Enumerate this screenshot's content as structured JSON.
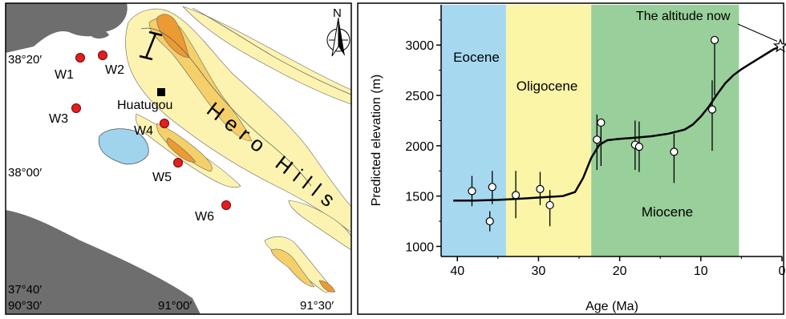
{
  "map": {
    "lat_labels": [
      "38°20′",
      "38°00′",
      "37°40′"
    ],
    "lon_labels": [
      "90°30′",
      "91°00′",
      "91°30′"
    ],
    "place_label": "Huatugou",
    "range_label": "Hero Hills",
    "north_label": "N",
    "wells": [
      {
        "name": "W1"
      },
      {
        "name": "W2"
      },
      {
        "name": "W3"
      },
      {
        "name": "W4"
      },
      {
        "name": "W5"
      },
      {
        "name": "W6"
      }
    ],
    "colors": {
      "basin": "#ffffff",
      "bedrock": "#6e6e6e",
      "lake": "#9fd3ee",
      "elev_low": "#fdf3b0",
      "elev_mid": "#f5d06a",
      "elev_high": "#ec9a33",
      "well": "#e02020"
    }
  },
  "chart_data": {
    "type": "scatter",
    "xlabel": "Age (Ma)",
    "ylabel": "Predicted elevation (m)",
    "xlim": [
      0,
      42
    ],
    "ylim": [
      900,
      3400
    ],
    "x_reversed": true,
    "x_ticks": [
      40,
      30,
      20,
      10,
      0
    ],
    "y_ticks": [
      1000,
      1500,
      2000,
      2500,
      3000
    ],
    "epochs": [
      {
        "name": "Eocene",
        "from": 42,
        "to": 34,
        "color": "#a6d8f0"
      },
      {
        "name": "Oligocene",
        "from": 34,
        "to": 23.5,
        "color": "#fbf5a8"
      },
      {
        "name": "Miocene",
        "from": 23.5,
        "to": 5.3,
        "color": "#98cf9a"
      }
    ],
    "points": [
      {
        "age": 38.2,
        "elev": 1550,
        "lo": 1400,
        "hi": 1700
      },
      {
        "age": 36.0,
        "elev": 1250,
        "lo": 1150,
        "hi": 1350
      },
      {
        "age": 35.7,
        "elev": 1590,
        "lo": 1420,
        "hi": 1750
      },
      {
        "age": 32.8,
        "elev": 1510,
        "lo": 1280,
        "hi": 1750
      },
      {
        "age": 29.8,
        "elev": 1570,
        "lo": 1410,
        "hi": 1740
      },
      {
        "age": 28.6,
        "elev": 1410,
        "lo": 1200,
        "hi": 1560
      },
      {
        "age": 22.8,
        "elev": 2060,
        "lo": 1760,
        "hi": 2310
      },
      {
        "age": 22.3,
        "elev": 2230,
        "lo": 1800,
        "hi": 2270
      },
      {
        "age": 18.1,
        "elev": 2010,
        "lo": 1760,
        "hi": 2250
      },
      {
        "age": 17.6,
        "elev": 1990,
        "lo": 1740,
        "hi": 2240
      },
      {
        "age": 13.3,
        "elev": 1940,
        "lo": 1630,
        "hi": 2120
      },
      {
        "age": 8.6,
        "elev": 2360,
        "lo": 1950,
        "hi": 2650
      },
      {
        "age": 8.3,
        "elev": 3050,
        "lo": 2500,
        "hi": 3050
      }
    ],
    "trend": {
      "age": [
        40.5,
        38,
        35,
        32,
        29,
        27,
        25.5,
        24.5,
        23.5,
        22.5,
        21.5,
        20,
        18,
        16,
        14,
        12,
        11,
        10,
        9,
        8,
        7,
        6,
        5,
        4,
        3,
        2,
        1,
        0
      ],
      "elev": [
        1455,
        1455,
        1462,
        1475,
        1490,
        1500,
        1540,
        1680,
        1880,
        2010,
        2055,
        2068,
        2080,
        2095,
        2120,
        2160,
        2210,
        2290,
        2390,
        2510,
        2620,
        2700,
        2760,
        2810,
        2860,
        2910,
        2960,
        2990
      ]
    },
    "current": {
      "age": 0,
      "elev": 2990,
      "label": "The altitude now"
    }
  }
}
